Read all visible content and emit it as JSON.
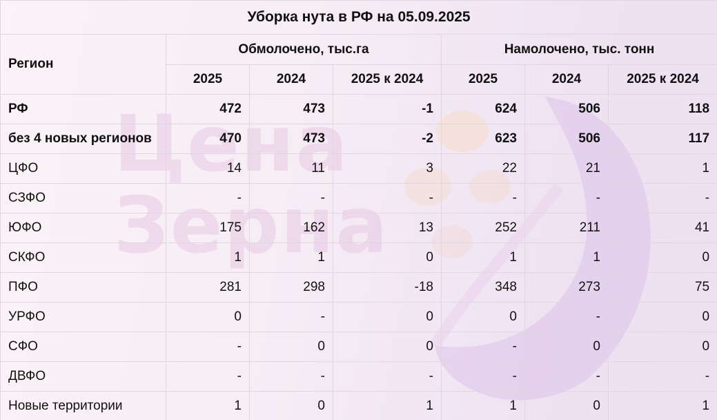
{
  "title": "Уборка нута в РФ на 05.09.2025",
  "header": {
    "region_label": "Регион",
    "group1": "Обмолочено, тыс.га",
    "group2": "Намолочено, тыс. тонн",
    "cols": [
      "2025",
      "2024",
      "2025 к 2024",
      "2025",
      "2024",
      "2025 к 2024"
    ]
  },
  "watermark": {
    "line1": "Цена",
    "line2": "Зерна"
  },
  "rows": [
    {
      "region": "РФ",
      "bold": true,
      "values": [
        "472",
        "473",
        "-1",
        "624",
        "506",
        "118"
      ]
    },
    {
      "region": "без 4 новых регионов",
      "bold": true,
      "values": [
        "470",
        "473",
        "-2",
        "623",
        "506",
        "117"
      ]
    },
    {
      "region": "ЦФО",
      "bold": false,
      "values": [
        "14",
        "11",
        "3",
        "22",
        "21",
        "1"
      ]
    },
    {
      "region": "СЗФО",
      "bold": false,
      "values": [
        "-",
        "-",
        "-",
        "-",
        "-",
        "-"
      ]
    },
    {
      "region": "ЮФО",
      "bold": false,
      "values": [
        "175",
        "162",
        "13",
        "252",
        "211",
        "41"
      ]
    },
    {
      "region": "СКФО",
      "bold": false,
      "values": [
        "1",
        "1",
        "0",
        "1",
        "1",
        "0"
      ]
    },
    {
      "region": "ПФО",
      "bold": false,
      "values": [
        "281",
        "298",
        "-18",
        "348",
        "273",
        "75"
      ]
    },
    {
      "region": "УРФО",
      "bold": false,
      "values": [
        "0",
        "-",
        "0",
        "0",
        "-",
        "0"
      ]
    },
    {
      "region": "СФО",
      "bold": false,
      "values": [
        "-",
        "0",
        "0",
        "-",
        "0",
        "0"
      ]
    },
    {
      "region": "ДВФО",
      "bold": false,
      "values": [
        "-",
        "-",
        "-",
        "-",
        "-",
        "-"
      ]
    },
    {
      "region": "Новые территории",
      "bold": false,
      "values": [
        "1",
        "0",
        "1",
        "1",
        "0",
        "1"
      ]
    }
  ]
}
